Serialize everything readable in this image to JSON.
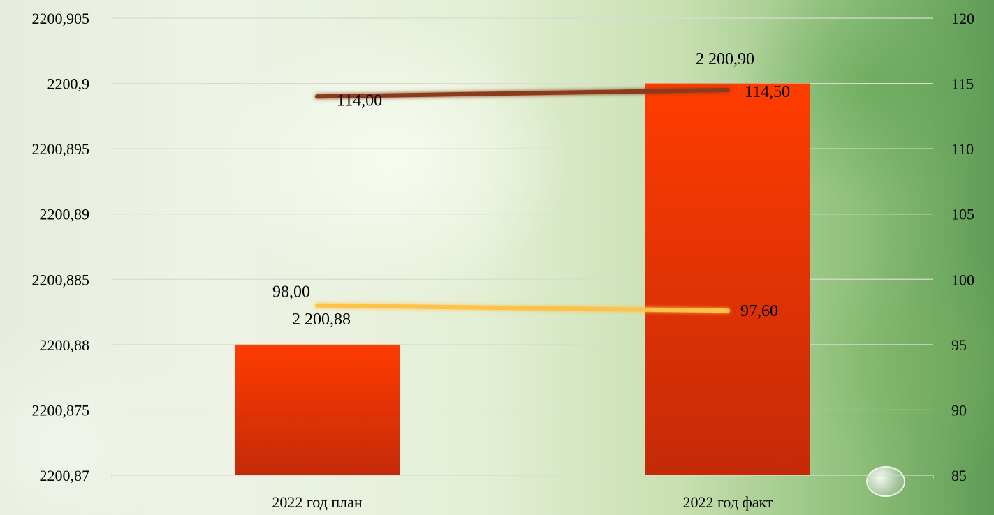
{
  "chart_data": {
    "type": "bar",
    "categories": [
      "2022 год план",
      "2022 год факт"
    ],
    "bar_series": {
      "values": [
        2200.88,
        2200.9
      ],
      "labels": [
        "2 200,88",
        "2 200,90"
      ],
      "color": "#ff3c00"
    },
    "line_series": [
      {
        "values": [
          114.0,
          114.5
        ],
        "labels": [
          "114,00",
          "114,50"
        ],
        "color": "#8b3a1a"
      },
      {
        "values": [
          98.0,
          97.6
        ],
        "labels": [
          "98,00",
          "97,60"
        ],
        "color": "#ffc24a"
      }
    ],
    "y_left": {
      "ylim": [
        2200.87,
        2200.905
      ],
      "ticks": [
        2200.905,
        2200.9,
        2200.895,
        2200.89,
        2200.885,
        2200.88,
        2200.875,
        2200.87
      ],
      "tick_labels": [
        "2200,905",
        "2200,9",
        "2200,895",
        "2200,89",
        "2200,885",
        "2200,88",
        "2200,875",
        "2200,87"
      ]
    },
    "y_right": {
      "ylim": [
        85,
        120
      ],
      "ticks": [
        120,
        115,
        110,
        105,
        100,
        95,
        90,
        85
      ],
      "tick_labels": [
        "120",
        "115",
        "110",
        "105",
        "100",
        "95",
        "90",
        "85"
      ]
    },
    "grid": true
  }
}
